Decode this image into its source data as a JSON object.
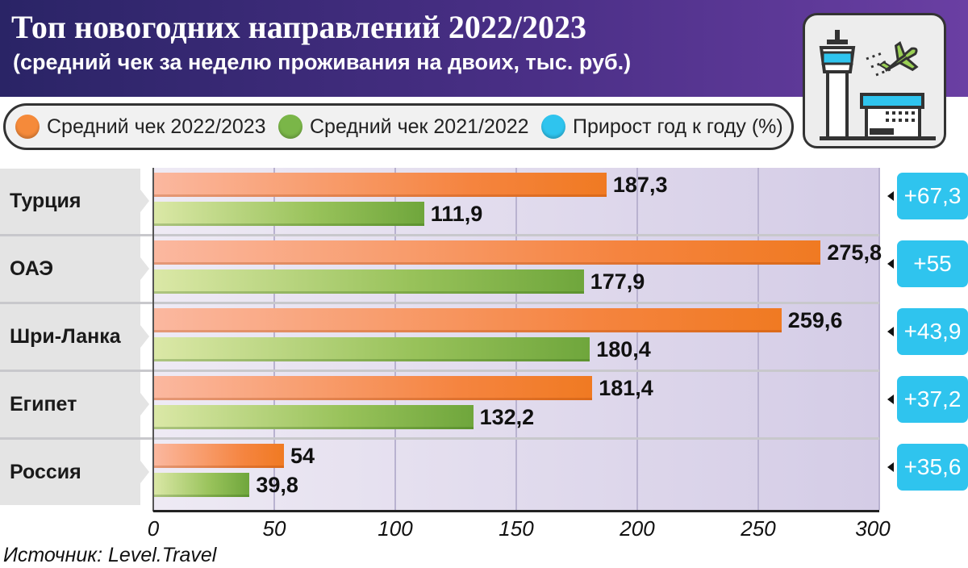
{
  "header": {
    "title": "Топ новогодних направлений 2022/2023",
    "subtitle": "(средний чек за неделю проживания на двоих, тыс. руб.)"
  },
  "legend": {
    "items": [
      {
        "label": "Средний чек 2022/2023",
        "color": "#f58a3a"
      },
      {
        "label": "Средний чек 2021/2022",
        "color": "#7ab648"
      },
      {
        "label": "Прирост год к году (%)",
        "color": "#2fc4ee"
      }
    ]
  },
  "icon": {
    "name": "airport-icon"
  },
  "source": "Источник: Level.Travel",
  "chart_data": {
    "type": "bar",
    "orientation": "horizontal",
    "title": "Топ новогодних направлений 2022/2023",
    "subtitle": "(средний чек за неделю проживания на двоих, тыс. руб.)",
    "categories": [
      "Турция",
      "ОАЭ",
      "Шри-Ланка",
      "Египет",
      "Россия"
    ],
    "series": [
      {
        "name": "Средний чек 2022/2023",
        "color": "#f58a3a",
        "values": [
          187.3,
          275.8,
          259.6,
          181.4,
          54
        ],
        "labels": [
          "187,3",
          "275,8",
          "259,6",
          "181,4",
          "54"
        ]
      },
      {
        "name": "Средний чек 2021/2022",
        "color": "#7ab648",
        "values": [
          111.9,
          177.9,
          180.4,
          132.2,
          39.8
        ],
        "labels": [
          "111,9",
          "177,9",
          "180,4",
          "132,2",
          "39,8"
        ]
      }
    ],
    "growth": {
      "name": "Прирост год к году (%)",
      "color": "#2fc4ee",
      "values": [
        67.3,
        55,
        43.9,
        37.2,
        35.6
      ],
      "labels": [
        "+67,3",
        "+55",
        "+43,9",
        "+37,2",
        "+35,6"
      ]
    },
    "xlim": [
      0,
      300
    ],
    "xticks": [
      0,
      50,
      100,
      150,
      200,
      250,
      300
    ],
    "xtick_labels": [
      "0",
      "50",
      "100",
      "150",
      "200",
      "250",
      "300"
    ],
    "grid": true,
    "legend_position": "top"
  }
}
